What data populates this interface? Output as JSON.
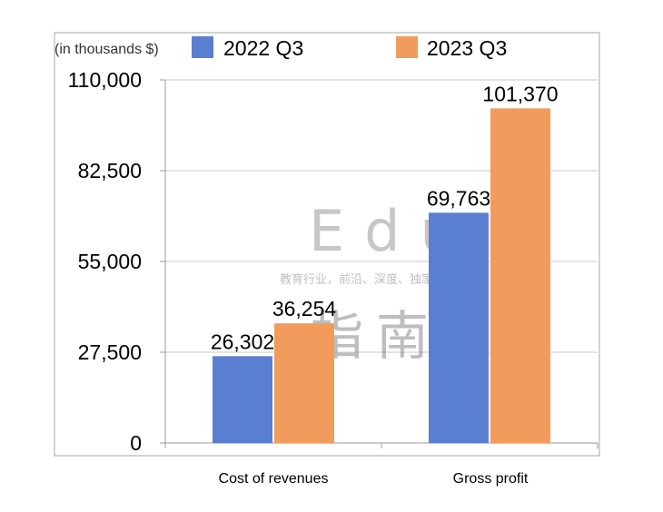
{
  "unit_note": "(in thousands $)",
  "watermark": {
    "line1": "Edu",
    "line2": "教育行业，前沿、深度、独家",
    "line3": "指南"
  },
  "colors": {
    "series_2022": "#5b7fd0",
    "series_2023": "#f19c5d",
    "grid": "#c8c8c8",
    "axis": "#999999",
    "frame": "#a6a6a6"
  },
  "chart_data": {
    "type": "bar",
    "title": "",
    "xlabel": "",
    "ylabel": "",
    "categories": [
      "Cost of revenues",
      "Gross profit"
    ],
    "series": [
      {
        "name": "2022 Q3",
        "values": [
          26302,
          69763
        ],
        "labels": [
          "26,302",
          "69,763"
        ]
      },
      {
        "name": "2023 Q3",
        "values": [
          36254,
          101370
        ],
        "labels": [
          "36,254",
          "101,370"
        ]
      }
    ],
    "ylim": [
      0,
      110000
    ],
    "yticks": [
      0,
      27500,
      55000,
      82500,
      110000
    ],
    "ytick_labels": [
      "0",
      "27,500",
      "55,000",
      "82,500",
      "110,000"
    ],
    "grid": true,
    "legend": "top"
  }
}
